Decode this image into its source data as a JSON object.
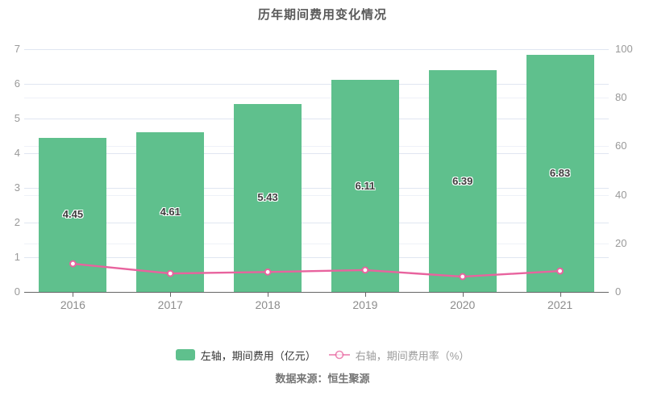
{
  "title": "历年期间费用变化情况",
  "source": "数据来源：恒生聚源",
  "legend": {
    "items": [
      {
        "label": "左轴，期间费用（亿元）",
        "type": "bar"
      },
      {
        "label": "右轴，期间费用率（%）",
        "type": "line"
      }
    ],
    "position": "bottom"
  },
  "colors": {
    "bar": "#5fc08d",
    "line": "#e8639e",
    "marker_fill": "#ffffff",
    "grid_major": "#e0e6f1",
    "grid_minor": "#eef1f8",
    "axis": "#666666",
    "axis_label": "#999999",
    "title_text": "#595959",
    "source_text": "#757575"
  },
  "chart_data": {
    "type": "bar",
    "title": "历年期间费用变化情况",
    "categories": [
      "2016",
      "2017",
      "2018",
      "2019",
      "2020",
      "2021"
    ],
    "series": [
      {
        "name": "左轴，期间费用（亿元）",
        "type": "bar",
        "axis": "left",
        "values": [
          4.45,
          4.61,
          5.43,
          6.11,
          6.39,
          6.83
        ],
        "labels": [
          "4.45",
          "4.61",
          "5.43",
          "6.11",
          "6.39",
          "6.83"
        ]
      },
      {
        "name": "右轴，期间费用率（%）",
        "type": "line",
        "axis": "right",
        "values": [
          11.6,
          7.6,
          8.2,
          9.0,
          6.3,
          8.6
        ],
        "values_estimated": true
      }
    ],
    "xlabel": "",
    "ylabel": "",
    "left_axis": {
      "min": 0,
      "max": 7,
      "ticks": [
        0,
        1,
        2,
        3,
        4,
        5,
        6,
        7
      ]
    },
    "right_axis": {
      "min": 0,
      "max": 100,
      "ticks": [
        0,
        20,
        40,
        60,
        80,
        100
      ]
    },
    "grid": true,
    "legend_position": "bottom"
  }
}
